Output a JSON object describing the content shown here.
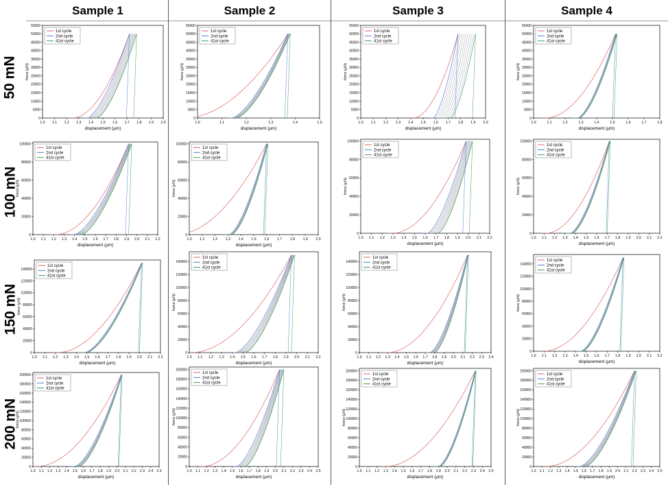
{
  "columns": [
    "Sample 1",
    "Sample 2",
    "Sample 3",
    "Sample 4"
  ],
  "rows": [
    "50 mN",
    "100 mN",
    "150 mN",
    "200 mN"
  ],
  "colors": {
    "first": "#e06060",
    "second": "#4f7fd0",
    "last": "#3e9e56",
    "mid": "#a0a0a0"
  },
  "chart_data": [
    {
      "type": "line",
      "panel": "Sample 1 / 50 mN",
      "xlabel": "displacement (μm)",
      "ylabel": "force (μN)",
      "xticks": [
        "1.0",
        "1.1",
        "1.2",
        "1.3",
        "1.4",
        "1.5",
        "1.6",
        "1.7",
        "1.8",
        "1.9",
        "2.0"
      ],
      "xlim": [
        1.0,
        2.0
      ],
      "yticks": [
        "0",
        "5000",
        "10000",
        "15000",
        "20000",
        "25000",
        "30000",
        "35000",
        "40000",
        "45000",
        "50000",
        "55000"
      ],
      "ylim": [
        0,
        55000
      ],
      "legend": [
        "1st cycle",
        "2nd cycle",
        "41st cycle"
      ],
      "series": [
        {
          "name": "1st cycle",
          "x0": 1.25,
          "xmax": 1.72,
          "ymax": 50000
        },
        {
          "name": "2nd cycle",
          "x0": 1.37,
          "xmax": 1.72,
          "ymax": 50000
        },
        {
          "name": "41st cycle",
          "x0": 1.45,
          "xmax": 1.78,
          "ymax": 50000
        }
      ]
    },
    {
      "type": "line",
      "panel": "Sample 2 / 50 mN",
      "xlabel": "displacement (μm)",
      "ylabel": "force (μN)",
      "xticks": [
        "1.0",
        "1.1",
        "1.2",
        "1.3",
        "1.4",
        "1.5"
      ],
      "xlim": [
        1.0,
        1.5
      ],
      "yticks": [
        "0",
        "5000",
        "10000",
        "15000",
        "20000",
        "25000",
        "30000",
        "35000",
        "40000",
        "45000",
        "50000",
        "55000"
      ],
      "ylim": [
        0,
        55000
      ],
      "legend": [
        "1st cycle",
        "2nd cycle",
        "41st cycle"
      ],
      "series": [
        {
          "name": "1st cycle",
          "x0": 0.95,
          "xmax": 1.37,
          "ymax": 50000
        },
        {
          "name": "2nd cycle",
          "x0": 1.14,
          "xmax": 1.37,
          "ymax": 50000
        },
        {
          "name": "41st cycle",
          "x0": 1.16,
          "xmax": 1.38,
          "ymax": 50000
        }
      ]
    },
    {
      "type": "line",
      "panel": "Sample 3 / 50 mN",
      "xlabel": "displacement (μm)",
      "ylabel": "force (μN)",
      "xticks": [
        "1.0",
        "1.1",
        "1.2",
        "1.3",
        "1.4",
        "1.5",
        "1.6",
        "1.7",
        "1.8",
        "1.9",
        "2.0"
      ],
      "xlim": [
        1.0,
        2.0
      ],
      "yticks": [
        "0",
        "5000",
        "10000",
        "15000",
        "20000",
        "25000",
        "30000",
        "35000",
        "40000",
        "45000",
        "50000",
        "55000"
      ],
      "ylim": [
        0,
        55000
      ],
      "legend": [
        "1st cycle",
        "2nd cycle",
        "41st cycle"
      ],
      "series": [
        {
          "name": "1st cycle",
          "x0": 1.42,
          "xmax": 1.78,
          "ymax": 50000
        },
        {
          "name": "2nd cycle",
          "x0": 1.58,
          "xmax": 1.78,
          "ymax": 50000
        },
        {
          "name": "41st cycle",
          "x0": 1.72,
          "xmax": 1.92,
          "ymax": 50000
        }
      ]
    },
    {
      "type": "line",
      "panel": "Sample 4 / 50 mN",
      "xlabel": "displacement (μm)",
      "ylabel": "force (μN)",
      "xticks": [
        "1.0",
        "1.1",
        "1.2",
        "1.3",
        "1.4",
        "1.5",
        "1.6",
        "1.7",
        "1.8"
      ],
      "xlim": [
        1.0,
        1.8
      ],
      "yticks": [
        "0",
        "5000",
        "10000",
        "15000",
        "20000",
        "25000",
        "30000",
        "35000",
        "40000",
        "45000",
        "50000",
        "55000"
      ],
      "ylim": [
        0,
        55000
      ],
      "legend": [
        "1st cycle",
        "2nd cycle",
        "41st cycle"
      ],
      "series": [
        {
          "name": "1st cycle",
          "x0": 1.08,
          "xmax": 1.52,
          "ymax": 50000
        },
        {
          "name": "2nd cycle",
          "x0": 1.28,
          "xmax": 1.52,
          "ymax": 50000
        },
        {
          "name": "41st cycle",
          "x0": 1.29,
          "xmax": 1.53,
          "ymax": 50000
        }
      ]
    },
    {
      "type": "line",
      "panel": "Sample 1 / 100 mN",
      "xlabel": "displacement (μm)",
      "ylabel": "force (μN)",
      "xticks": [
        "1.0",
        "1.1",
        "1.2",
        "1.3",
        "1.4",
        "1.5",
        "1.6",
        "1.7",
        "1.8",
        "1.9",
        "2.0",
        "2.1",
        "2.2"
      ],
      "xlim": [
        1.0,
        2.2
      ],
      "yticks": [
        "0",
        "20000",
        "40000",
        "60000",
        "80000",
        "100000"
      ],
      "ylim": [
        0,
        102000
      ],
      "legend": [
        "1st cycle",
        "2nd cycle",
        "41st cycle"
      ],
      "series": [
        {
          "name": "1st cycle",
          "x0": 1.22,
          "xmax": 1.92,
          "ymax": 100000
        },
        {
          "name": "2nd cycle",
          "x0": 1.4,
          "xmax": 1.92,
          "ymax": 100000
        },
        {
          "name": "41st cycle",
          "x0": 1.47,
          "xmax": 1.95,
          "ymax": 100000
        }
      ]
    },
    {
      "type": "line",
      "panel": "Sample 2 / 100 mN",
      "xlabel": "displacement (μm)",
      "ylabel": "force (μN)",
      "xticks": [
        "1.0",
        "1.1",
        "1.2",
        "1.3",
        "1.4",
        "1.5",
        "1.6",
        "1.7",
        "1.8",
        "1.9",
        "2.0"
      ],
      "xlim": [
        1.0,
        2.0
      ],
      "yticks": [
        "0",
        "20000",
        "40000",
        "60000",
        "80000",
        "100000"
      ],
      "ylim": [
        0,
        102000
      ],
      "legend": [
        "1st cycle",
        "2nd cycle",
        "41st cycle"
      ],
      "series": [
        {
          "name": "1st cycle",
          "x0": 0.9,
          "xmax": 1.6,
          "ymax": 100000
        },
        {
          "name": "2nd cycle",
          "x0": 1.31,
          "xmax": 1.6,
          "ymax": 100000
        },
        {
          "name": "41st cycle",
          "x0": 1.33,
          "xmax": 1.61,
          "ymax": 100000
        }
      ]
    },
    {
      "type": "line",
      "panel": "Sample 3 / 100 mN",
      "xlabel": "displacement (μm)",
      "ylabel": "force (μN)",
      "xticks": [
        "1.0",
        "1.1",
        "1.2",
        "1.3",
        "1.4",
        "1.5",
        "1.6",
        "1.7",
        "1.8",
        "1.9",
        "2.0",
        "2.1",
        "2.2"
      ],
      "xlim": [
        1.0,
        2.2
      ],
      "yticks": [
        "0",
        "20000",
        "40000",
        "60000",
        "80000",
        "100000"
      ],
      "ylim": [
        0,
        102000
      ],
      "legend": [
        "1st cycle",
        "2nd cycle",
        "41st cycle"
      ],
      "series": [
        {
          "name": "1st cycle",
          "x0": 1.3,
          "xmax": 1.98,
          "ymax": 100000
        },
        {
          "name": "2nd cycle",
          "x0": 1.62,
          "xmax": 1.98,
          "ymax": 100000
        },
        {
          "name": "41st cycle",
          "x0": 1.72,
          "xmax": 2.04,
          "ymax": 100000
        }
      ]
    },
    {
      "type": "line",
      "panel": "Sample 4 / 100 mN",
      "xlabel": "displacement (μm)",
      "ylabel": "force (μN)",
      "xticks": [
        "1.0",
        "1.1",
        "1.2",
        "1.3",
        "1.4",
        "1.5",
        "1.6",
        "1.7",
        "1.8",
        "1.9",
        "2.0",
        "2.1",
        "2.2"
      ],
      "xlim": [
        1.0,
        2.2
      ],
      "yticks": [
        "0",
        "20000",
        "40000",
        "60000",
        "80000",
        "100000"
      ],
      "ylim": [
        0,
        102000
      ],
      "legend": [
        "1st cycle",
        "2nd cycle",
        "41st cycle"
      ],
      "series": [
        {
          "name": "1st cycle",
          "x0": 1.12,
          "xmax": 1.72,
          "ymax": 100000
        },
        {
          "name": "2nd cycle",
          "x0": 1.35,
          "xmax": 1.72,
          "ymax": 100000
        },
        {
          "name": "41st cycle",
          "x0": 1.37,
          "xmax": 1.73,
          "ymax": 100000
        }
      ]
    },
    {
      "type": "line",
      "panel": "Sample 1 / 150 mN",
      "xlabel": "displacement (μm)",
      "ylabel": "force (μN)",
      "xticks": [
        "1.0",
        "1.1",
        "1.2",
        "1.3",
        "1.4",
        "1.5",
        "1.6",
        "1.7",
        "1.8",
        "1.9",
        "2.0",
        "2.1",
        "2.2"
      ],
      "xlim": [
        1.0,
        2.2
      ],
      "yticks": [
        "0",
        "20000",
        "40000",
        "60000",
        "80000",
        "100000",
        "120000",
        "140000"
      ],
      "ylim": [
        0,
        155000
      ],
      "legend": [
        "1st cycle",
        "2nd cycle",
        "41st cycle"
      ],
      "series": [
        {
          "name": "1st cycle",
          "x0": 1.22,
          "xmax": 2.02,
          "ymax": 150000
        },
        {
          "name": "2nd cycle",
          "x0": 1.48,
          "xmax": 2.02,
          "ymax": 150000
        },
        {
          "name": "41st cycle",
          "x0": 1.5,
          "xmax": 2.03,
          "ymax": 150000
        }
      ]
    },
    {
      "type": "line",
      "panel": "Sample 2 / 150 mN",
      "xlabel": "displacement (μm)",
      "ylabel": "force (μN)",
      "xticks": [
        "1.0",
        "1.1",
        "1.2",
        "1.3",
        "1.4",
        "1.5",
        "1.6",
        "1.7",
        "1.8",
        "1.9",
        "2.0",
        "2.1",
        "2.2"
      ],
      "xlim": [
        1.0,
        2.2
      ],
      "yticks": [
        "0",
        "20000",
        "40000",
        "60000",
        "80000",
        "100000",
        "120000",
        "140000"
      ],
      "ylim": [
        0,
        155000
      ],
      "legend": [
        "1st cycle",
        "2nd cycle",
        "41st cycle"
      ],
      "series": [
        {
          "name": "1st cycle",
          "x0": 1.02,
          "xmax": 1.95,
          "ymax": 150000
        },
        {
          "name": "2nd cycle",
          "x0": 1.43,
          "xmax": 1.95,
          "ymax": 150000
        },
        {
          "name": "41st cycle",
          "x0": 1.52,
          "xmax": 1.98,
          "ymax": 150000
        }
      ]
    },
    {
      "type": "line",
      "panel": "Sample 3 / 150 mN",
      "xlabel": "displacement (μm)",
      "ylabel": "force (μN)",
      "xticks": [
        "1.0",
        "1.1",
        "1.2",
        "1.3",
        "1.4",
        "1.5",
        "1.6",
        "1.7",
        "1.8",
        "1.9",
        "2.0",
        "2.1",
        "2.2",
        "2.3",
        "2.4"
      ],
      "xlim": [
        1.0,
        2.4
      ],
      "yticks": [
        "0",
        "20000",
        "40000",
        "60000",
        "80000",
        "100000",
        "120000",
        "140000"
      ],
      "ylim": [
        0,
        155000
      ],
      "legend": [
        "1st cycle",
        "2nd cycle",
        "41st cycle"
      ],
      "series": [
        {
          "name": "1st cycle",
          "x0": 1.3,
          "xmax": 2.15,
          "ymax": 150000
        },
        {
          "name": "2nd cycle",
          "x0": 1.75,
          "xmax": 2.15,
          "ymax": 150000
        },
        {
          "name": "41st cycle",
          "x0": 1.8,
          "xmax": 2.16,
          "ymax": 150000
        }
      ]
    },
    {
      "type": "line",
      "panel": "Sample 4 / 150 mN",
      "xlabel": "displacement (μm)",
      "ylabel": "force (μN)",
      "xticks": [
        "1.0",
        "1.1",
        "1.2",
        "1.3",
        "1.4",
        "1.5",
        "1.6",
        "1.7",
        "1.8",
        "1.9",
        "2.0",
        "2.1",
        "2.2"
      ],
      "xlim": [
        1.0,
        2.2
      ],
      "yticks": [
        "0",
        "20000",
        "40000",
        "60000",
        "80000",
        "100000",
        "120000",
        "140000"
      ],
      "ylim": [
        0,
        155000
      ],
      "legend": [
        "1st cycle",
        "2nd cycle",
        "41st cycle"
      ],
      "series": [
        {
          "name": "1st cycle",
          "x0": 1.1,
          "xmax": 1.85,
          "ymax": 150000
        },
        {
          "name": "2nd cycle",
          "x0": 1.45,
          "xmax": 1.85,
          "ymax": 150000
        },
        {
          "name": "41st cycle",
          "x0": 1.47,
          "xmax": 1.86,
          "ymax": 150000
        }
      ]
    },
    {
      "type": "line",
      "panel": "Sample 1 / 200 mN",
      "xlabel": "displacement (μm)",
      "ylabel": "force (μN)",
      "xticks": [
        "1.0",
        "1.1",
        "1.2",
        "1.3",
        "1.4",
        "1.5",
        "1.6",
        "1.7",
        "1.8",
        "1.9",
        "2.0",
        "2.1",
        "2.2",
        "2.3",
        "2.4",
        "2.5"
      ],
      "xlim": [
        1.0,
        2.5
      ],
      "yticks": [
        "0",
        "20000",
        "40000",
        "60000",
        "80000",
        "100000",
        "120000",
        "140000",
        "160000",
        "180000",
        "200000"
      ],
      "ylim": [
        0,
        205000
      ],
      "legend": [
        "1st cycle",
        "2nd cycle",
        "41st cycle"
      ],
      "series": [
        {
          "name": "1st cycle",
          "x0": 1.05,
          "xmax": 2.05,
          "ymax": 200000
        },
        {
          "name": "2nd cycle",
          "x0": 1.5,
          "xmax": 2.05,
          "ymax": 200000
        },
        {
          "name": "41st cycle",
          "x0": 1.55,
          "xmax": 2.06,
          "ymax": 200000
        }
      ]
    },
    {
      "type": "line",
      "panel": "Sample 2 / 200 mN",
      "xlabel": "displacement (μm)",
      "ylabel": "force (μN)",
      "xticks": [
        "1.0",
        "1.1",
        "1.2",
        "1.3",
        "1.4",
        "1.5",
        "1.6",
        "1.7",
        "1.8",
        "1.9",
        "2.0",
        "2.1",
        "2.2",
        "2.3",
        "2.4",
        "2.5"
      ],
      "xlim": [
        1.0,
        2.5
      ],
      "yticks": [
        "0",
        "20000",
        "40000",
        "60000",
        "80000",
        "100000",
        "120000",
        "140000",
        "160000",
        "180000",
        "200000"
      ],
      "ylim": [
        0,
        205000
      ],
      "legend": [
        "1st cycle",
        "2nd cycle",
        "41st cycle"
      ],
      "series": [
        {
          "name": "1st cycle",
          "x0": 1.15,
          "xmax": 2.05,
          "ymax": 200000
        },
        {
          "name": "2nd cycle",
          "x0": 1.55,
          "xmax": 2.05,
          "ymax": 200000
        },
        {
          "name": "41st cycle",
          "x0": 1.65,
          "xmax": 2.1,
          "ymax": 200000
        }
      ]
    },
    {
      "type": "line",
      "panel": "Sample 3 / 200 mN",
      "xlabel": "displacement (μm)",
      "ylabel": "force (μN)",
      "xticks": [
        "1.0",
        "1.1",
        "1.2",
        "1.3",
        "1.4",
        "1.5",
        "1.6",
        "1.7",
        "1.8",
        "1.9",
        "2.0",
        "2.1",
        "2.2",
        "2.3",
        "2.4",
        "2.5"
      ],
      "xlim": [
        1.0,
        2.5
      ],
      "yticks": [
        "0",
        "20000",
        "40000",
        "60000",
        "80000",
        "100000",
        "120000",
        "140000",
        "160000",
        "180000",
        "200000"
      ],
      "ylim": [
        0,
        205000
      ],
      "legend": [
        "1st cycle",
        "2nd cycle",
        "41st cycle"
      ],
      "series": [
        {
          "name": "1st cycle",
          "x0": 1.3,
          "xmax": 2.32,
          "ymax": 200000
        },
        {
          "name": "2nd cycle",
          "x0": 1.9,
          "xmax": 2.32,
          "ymax": 200000
        },
        {
          "name": "41st cycle",
          "x0": 1.92,
          "xmax": 2.33,
          "ymax": 200000
        }
      ]
    },
    {
      "type": "line",
      "panel": "Sample 4 / 200 mN",
      "xlabel": "displacement (μm)",
      "ylabel": "force (μN)",
      "xticks": [
        "1.0",
        "1.1",
        "1.2",
        "1.3",
        "1.4",
        "1.5",
        "1.6",
        "1.7",
        "1.8",
        "1.9",
        "2.0",
        "2.1",
        "2.2",
        "2.3",
        "2.4",
        "2.5"
      ],
      "xlim": [
        1.0,
        2.5
      ],
      "yticks": [
        "0",
        "20000",
        "40000",
        "60000",
        "80000",
        "100000",
        "120000",
        "140000",
        "160000",
        "180000",
        "200000"
      ],
      "ylim": [
        0,
        205000
      ],
      "legend": [
        "1st cycle",
        "2nd cycle",
        "41st cycle"
      ],
      "series": [
        {
          "name": "1st cycle",
          "x0": 1.15,
          "xmax": 2.2,
          "ymax": 200000
        },
        {
          "name": "2nd cycle",
          "x0": 1.55,
          "xmax": 2.2,
          "ymax": 200000
        },
        {
          "name": "41st cycle",
          "x0": 1.62,
          "xmax": 2.22,
          "ymax": 200000
        }
      ]
    }
  ]
}
